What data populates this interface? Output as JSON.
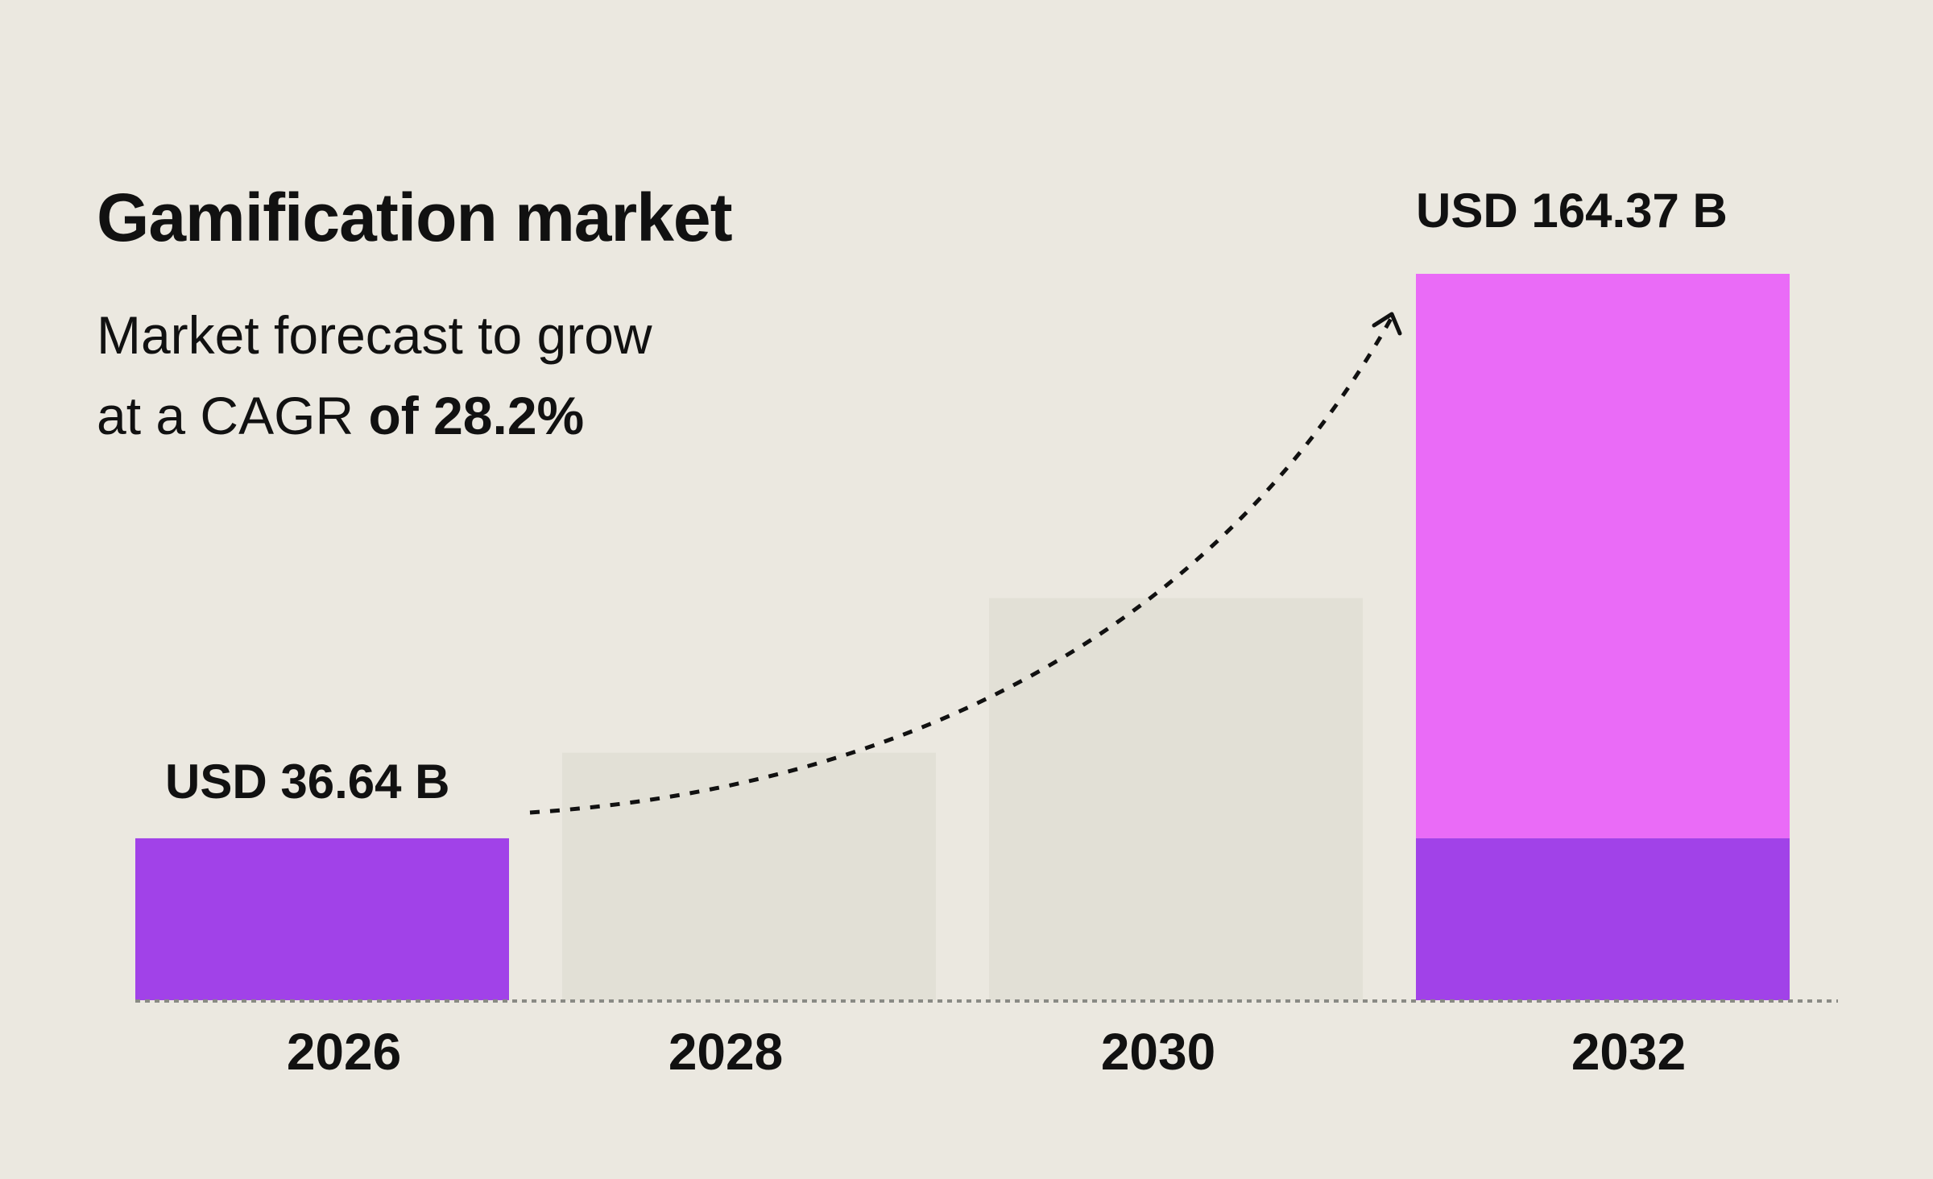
{
  "title": "Gamification market",
  "subtitle": {
    "line1": "Market forecast to grow",
    "line2_prefix": "at a CAGR ",
    "line2_bold": "of 28.2%"
  },
  "colors": {
    "background": "#ebe8e0",
    "base_bar": "#a142e8",
    "growth_bar": "#ea6bf7",
    "placeholder_bar": "#e2e0d6",
    "baseline": "#8a8a85",
    "arrow": "#111111"
  },
  "chart_data": {
    "type": "bar",
    "categories": [
      "2026",
      "2028",
      "2030",
      "2032"
    ],
    "values": [
      36.64,
      56,
      91,
      164.37
    ],
    "value_labels": [
      "USD 36.64 B",
      "",
      "",
      "USD 164.37 B"
    ],
    "highlighted": [
      true,
      false,
      false,
      true
    ],
    "base_value": 36.64,
    "unit": "USD B",
    "ylim": [
      0,
      170
    ],
    "grid": false,
    "annotation": "dashed growth arrow from 2026 to 2032",
    "xlabel": "",
    "ylabel": ""
  }
}
